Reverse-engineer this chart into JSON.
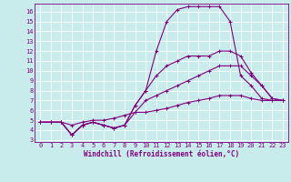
{
  "title": "",
  "xlabel": "Windchill (Refroidissement éolien,°C)",
  "ylabel": "",
  "xlim": [
    -0.5,
    23.5
  ],
  "ylim": [
    2.8,
    16.8
  ],
  "xticks": [
    0,
    1,
    2,
    3,
    4,
    5,
    6,
    7,
    8,
    9,
    10,
    11,
    12,
    13,
    14,
    15,
    16,
    17,
    18,
    19,
    20,
    21,
    22,
    23
  ],
  "yticks": [
    3,
    4,
    5,
    6,
    7,
    8,
    9,
    10,
    11,
    12,
    13,
    14,
    15,
    16
  ],
  "background_color": "#c8ecec",
  "line_color": "#800080",
  "grid_color": "#ffffff",
  "line1_x": [
    0,
    1,
    2,
    3,
    4,
    5,
    6,
    7,
    8,
    9,
    10,
    11,
    12,
    13,
    14,
    15,
    16,
    17,
    18,
    19,
    20,
    21,
    22,
    23
  ],
  "line1_y": [
    4.8,
    4.8,
    4.8,
    3.5,
    4.5,
    4.8,
    4.5,
    4.2,
    4.5,
    6.5,
    8.0,
    12.0,
    15.0,
    16.2,
    16.5,
    16.5,
    16.5,
    16.5,
    15.0,
    9.5,
    8.5,
    7.2,
    7.0,
    7.0
  ],
  "line2_x": [
    0,
    1,
    2,
    3,
    4,
    5,
    6,
    7,
    8,
    9,
    10,
    11,
    12,
    13,
    14,
    15,
    16,
    17,
    18,
    19,
    20,
    21,
    22,
    23
  ],
  "line2_y": [
    4.8,
    4.8,
    4.8,
    3.5,
    4.5,
    4.8,
    4.5,
    4.2,
    4.5,
    6.5,
    8.0,
    9.5,
    10.5,
    11.0,
    11.5,
    11.5,
    11.5,
    12.0,
    12.0,
    11.5,
    9.8,
    8.5,
    7.2,
    7.0
  ],
  "line3_x": [
    0,
    1,
    2,
    3,
    4,
    5,
    6,
    7,
    8,
    9,
    10,
    11,
    12,
    13,
    14,
    15,
    16,
    17,
    18,
    19,
    20,
    21,
    22,
    23
  ],
  "line3_y": [
    4.8,
    4.8,
    4.8,
    3.5,
    4.5,
    4.8,
    4.5,
    4.2,
    4.5,
    5.8,
    7.0,
    7.5,
    8.0,
    8.5,
    9.0,
    9.5,
    10.0,
    10.5,
    10.5,
    10.5,
    9.5,
    8.5,
    7.2,
    7.0
  ],
  "line4_x": [
    0,
    1,
    2,
    3,
    4,
    5,
    6,
    7,
    8,
    9,
    10,
    11,
    12,
    13,
    14,
    15,
    16,
    17,
    18,
    19,
    20,
    21,
    22,
    23
  ],
  "line4_y": [
    4.8,
    4.8,
    4.8,
    4.5,
    4.8,
    5.0,
    5.0,
    5.2,
    5.5,
    5.8,
    5.8,
    6.0,
    6.2,
    6.5,
    6.8,
    7.0,
    7.2,
    7.5,
    7.5,
    7.5,
    7.2,
    7.0,
    7.0,
    7.0
  ],
  "tick_fontsize": 5,
  "xlabel_fontsize": 5.5
}
